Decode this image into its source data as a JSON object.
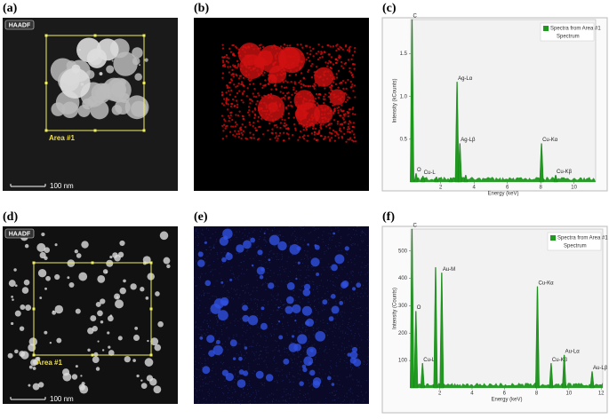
{
  "images": [
    {
      "label": "(a)",
      "badge": "HAADF",
      "area": "Area #1",
      "scale_bar": "100 nm"
    },
    {
      "label": "(b)"
    },
    {
      "label": "(d)",
      "badge": "HAADF",
      "area": "Area #1",
      "scale_bar": "100 nm"
    },
    {
      "label": "(e)"
    }
  ],
  "spectra": [
    {
      "label": "(c)",
      "y_label": "Intensity (kCounts)",
      "x_label": "Energy (keV)",
      "legend": "Spectra from Area #1",
      "legend_sub": "Spectrum",
      "xlim": [
        0.2,
        11.3
      ],
      "ylim": [
        0,
        1.9
      ],
      "xticks": [
        2,
        4,
        6,
        8,
        10
      ],
      "yticks": [
        0.5,
        {
          "value": 1,
          "label": "1.0"
        },
        1.5
      ],
      "peaks": [
        {
          "energy": 0.28,
          "height": 1.95,
          "label": "C"
        },
        {
          "energy": 0.52,
          "height": 0.1,
          "label": "O"
        },
        {
          "energy": 0.93,
          "height": 0.07,
          "label": "Cu-L"
        },
        {
          "energy": 1.74,
          "height": 0.06
        },
        {
          "energy": 2.6,
          "height": 0.05
        },
        {
          "energy": 2.98,
          "height": 1.17,
          "label": "Ag-Lα"
        },
        {
          "energy": 3.15,
          "height": 0.45,
          "label": "Ag-Lβ"
        },
        {
          "energy": 3.5,
          "height": 0.08
        },
        {
          "energy": 8.05,
          "height": 0.45,
          "label": "Cu-Kα"
        },
        {
          "energy": 8.9,
          "height": 0.08,
          "label": "Cu-Kβ"
        }
      ]
    },
    {
      "label": "(f)",
      "y_label": "Intensity (Counts)",
      "x_label": "Energy (keV)",
      "legend": "Spectra from Area #1",
      "legend_sub": "Spectrum",
      "xlim": [
        0.2,
        12.1
      ],
      "ylim": [
        0,
        580
      ],
      "xticks": [
        2,
        4,
        6,
        8,
        10,
        12
      ],
      "yticks": [
        100,
        200,
        300,
        400,
        500
      ],
      "peaks": [
        {
          "energy": 0.28,
          "height": 600,
          "label": "C"
        },
        {
          "energy": 0.52,
          "height": 280,
          "label": "O"
        },
        {
          "energy": 0.93,
          "height": 90,
          "label": "Cu-L"
        },
        {
          "energy": 1.74,
          "height": 440
        },
        {
          "energy": 2.12,
          "height": 420,
          "label": "Au-M"
        },
        {
          "energy": 8.05,
          "height": 370,
          "label": "Cu-Kα"
        },
        {
          "energy": 8.9,
          "height": 90,
          "label": "Cu-Kβ"
        },
        {
          "energy": 9.71,
          "height": 120,
          "label": "Au-Lα"
        },
        {
          "energy": 11.44,
          "height": 60,
          "label": "Au-Lβ"
        }
      ]
    }
  ]
}
